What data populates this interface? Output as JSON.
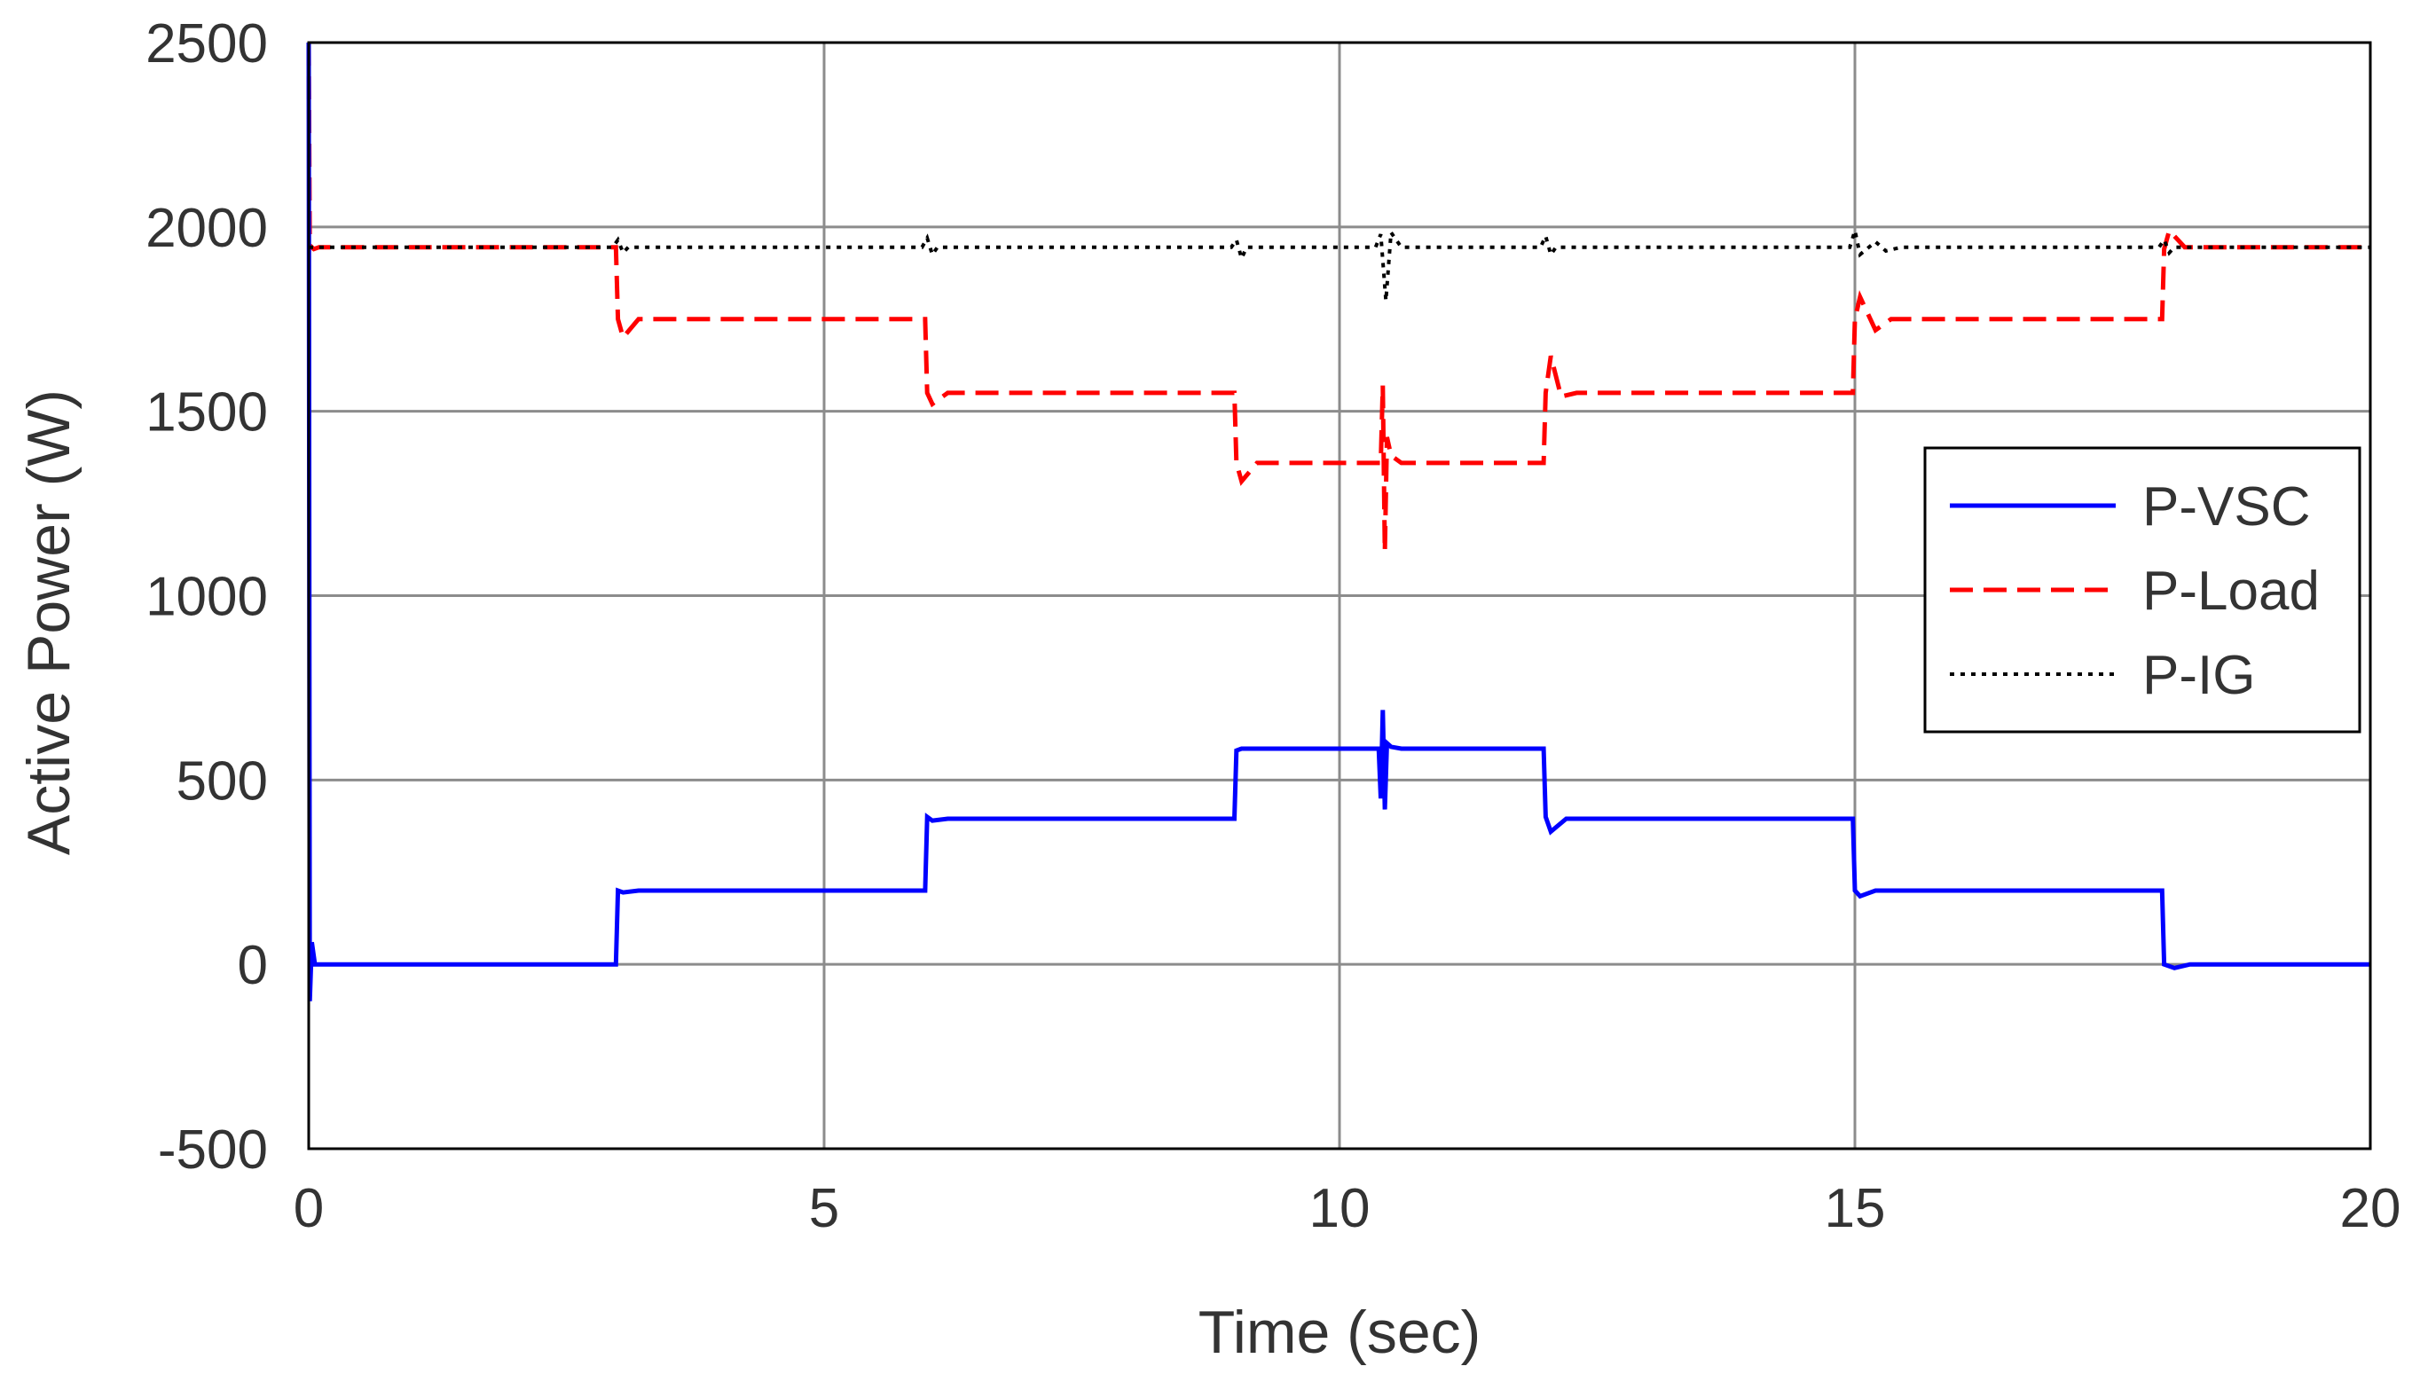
{
  "chart_data": {
    "type": "line",
    "title": "",
    "xlabel": "Time (sec)",
    "ylabel": "Active Power (W)",
    "xlim": [
      0,
      20
    ],
    "ylim": [
      -500,
      2500
    ],
    "xticks": [
      0,
      5,
      10,
      15,
      20
    ],
    "yticks": [
      -500,
      0,
      500,
      1000,
      1500,
      2000,
      2500
    ],
    "grid": true,
    "legend_position": "right",
    "series": [
      {
        "name": "P-VSC",
        "color": "#0000ff",
        "style": "solid",
        "x": [
          0,
          0.01,
          0.03,
          0.06,
          0.1,
          2.98,
          3.0,
          3.05,
          3.2,
          5.98,
          6.0,
          6.05,
          6.2,
          8.98,
          9.0,
          9.05,
          9.2,
          10.38,
          10.4,
          10.42,
          10.44,
          10.46,
          10.5,
          10.6,
          11.98,
          12.0,
          12.05,
          12.2,
          14.98,
          15.0,
          15.05,
          15.2,
          17.98,
          18.0,
          18.1,
          18.25,
          20.0
        ],
        "y": [
          2500,
          -100,
          60,
          0,
          0,
          0,
          200,
          195,
          200,
          200,
          400,
          390,
          395,
          395,
          580,
          585,
          585,
          585,
          450,
          690,
          420,
          600,
          590,
          585,
          585,
          400,
          360,
          395,
          395,
          200,
          185,
          200,
          200,
          0,
          -10,
          0,
          0
        ]
      },
      {
        "name": "P-Load",
        "color": "#ff0000",
        "style": "dashed",
        "x": [
          0,
          0.01,
          0.05,
          0.1,
          2.98,
          3.0,
          3.05,
          3.2,
          5.98,
          6.0,
          6.05,
          6.2,
          8.98,
          9.0,
          9.05,
          9.2,
          10.38,
          10.4,
          10.42,
          10.44,
          10.46,
          10.5,
          10.6,
          11.98,
          12.0,
          12.05,
          12.15,
          12.3,
          14.98,
          15.0,
          15.05,
          15.2,
          15.35,
          17.98,
          18.0,
          18.05,
          18.2,
          20.0
        ],
        "y": [
          2500,
          1950,
          1940,
          1945,
          1945,
          1750,
          1700,
          1750,
          1750,
          1550,
          1520,
          1550,
          1550,
          1360,
          1310,
          1360,
          1360,
          1360,
          1570,
          1120,
          1430,
          1380,
          1360,
          1360,
          1550,
          1650,
          1540,
          1550,
          1550,
          1750,
          1810,
          1720,
          1750,
          1750,
          1940,
          1990,
          1945,
          1945
        ]
      },
      {
        "name": "P-IG",
        "color": "#000000",
        "style": "dotted",
        "x": [
          0,
          0.05,
          2.95,
          3.0,
          3.05,
          3.1,
          5.95,
          6.0,
          6.05,
          6.1,
          8.95,
          9.0,
          9.05,
          9.1,
          10.35,
          10.4,
          10.45,
          10.5,
          10.6,
          11.95,
          12.0,
          12.05,
          12.1,
          14.95,
          15.0,
          15.05,
          15.2,
          15.3,
          15.45,
          17.95,
          18.0,
          18.05,
          18.1,
          20.0
        ],
        "y": [
          1945,
          1945,
          1945,
          1965,
          1930,
          1945,
          1945,
          1970,
          1925,
          1945,
          1945,
          1965,
          1915,
          1945,
          1945,
          1980,
          1800,
          1985,
          1945,
          1945,
          1975,
          1925,
          1945,
          1945,
          1990,
          1925,
          1960,
          1935,
          1945,
          1945,
          1965,
          1930,
          1945,
          1945
        ]
      }
    ]
  }
}
